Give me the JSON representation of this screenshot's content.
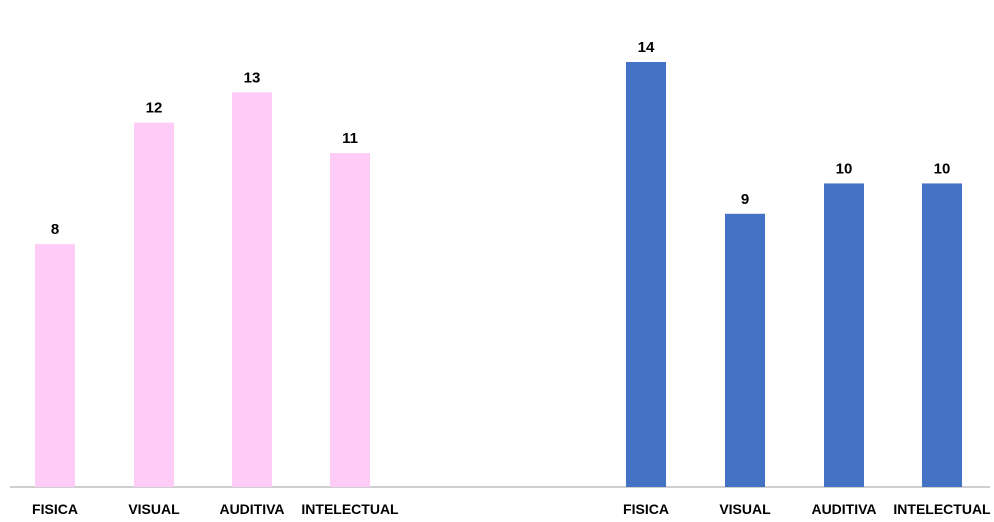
{
  "chart_data": [
    {
      "type": "bar",
      "categories": [
        "FISICA",
        "VISUAL",
        "AUDITIVA",
        "INTELECTUAL"
      ],
      "values": [
        8,
        12,
        13,
        11
      ],
      "color": "#ffccf7",
      "ylim": [
        0,
        14.8
      ],
      "grid": false,
      "legend": "none"
    },
    {
      "type": "bar",
      "categories": [
        "FISICA",
        "VISUAL",
        "AUDITIVA",
        "INTELECTUAL"
      ],
      "values": [
        14,
        9,
        10,
        10
      ],
      "color": "#4472c4",
      "ylim": [
        0,
        14.8
      ],
      "grid": false,
      "legend": "none"
    }
  ]
}
